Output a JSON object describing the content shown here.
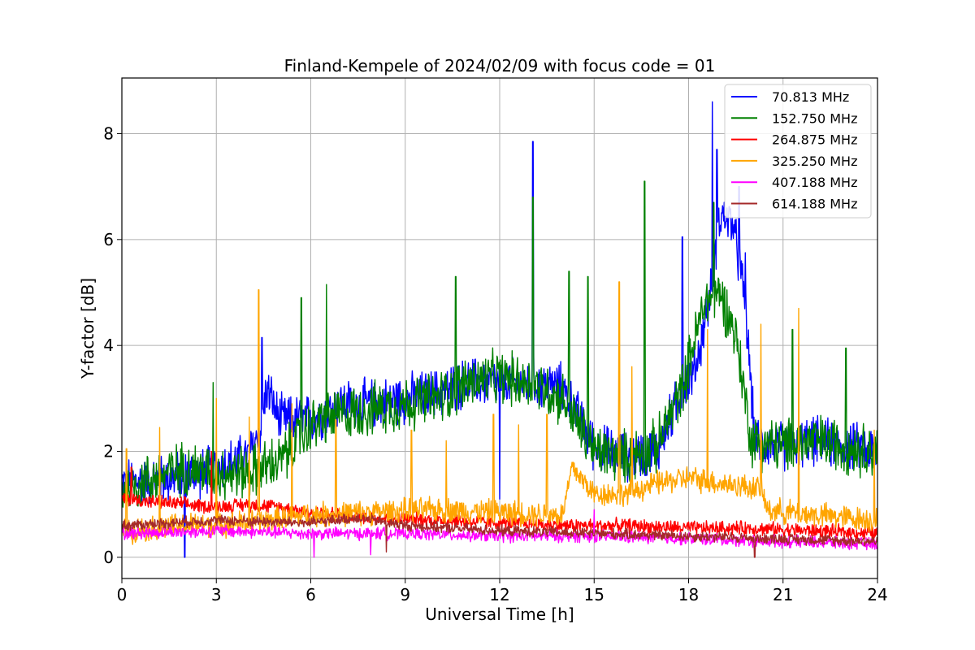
{
  "chart_data": {
    "type": "line",
    "title": "Finland-Kempele of 2024/02/09 with focus code = 01",
    "xlabel": "Universal Time [h]",
    "ylabel": "Y-factor [dB]",
    "xlim": [
      0,
      24
    ],
    "ylim": [
      -0.4,
      9.05
    ],
    "xticks": [
      0,
      3,
      6,
      9,
      12,
      15,
      18,
      21,
      24
    ],
    "yticks": [
      0,
      2,
      4,
      6,
      8
    ],
    "grid": true,
    "legend_position": "top-right",
    "series": [
      {
        "name": " 70.813 MHz",
        "color": "#0000ff",
        "noise": 0.55,
        "x": [
          0,
          1.5,
          2.5,
          3,
          4,
          4.4,
          4.6,
          5,
          6,
          7,
          8,
          9,
          10,
          11,
          12,
          13,
          14,
          15,
          16,
          17,
          17.8,
          18.2,
          18.7,
          19,
          19.4,
          19.8,
          20.1,
          21,
          22,
          23,
          24
        ],
        "y": [
          1.4,
          1.5,
          1.6,
          1.7,
          1.9,
          2.4,
          3.2,
          2.6,
          2.6,
          2.9,
          2.9,
          3.0,
          3.1,
          3.3,
          3.3,
          3.3,
          3.2,
          2.1,
          1.9,
          2.0,
          3.2,
          3.5,
          5.0,
          6.5,
          6.3,
          4.8,
          2.2,
          2.1,
          2.2,
          2.1,
          2.0
        ],
        "spikes": [
          [
            4.45,
            4.15
          ],
          [
            13.05,
            7.85
          ],
          [
            17.8,
            6.05
          ],
          [
            18.75,
            8.6
          ],
          [
            18.9,
            7.7
          ],
          [
            19.6,
            7.0
          ],
          [
            19.8,
            5.75
          ],
          [
            12,
            1.1
          ],
          [
            2.0,
            0.0
          ]
        ]
      },
      {
        "name": "152.750 MHz",
        "color": "#008000",
        "noise": 0.6,
        "x": [
          0,
          1,
          2,
          3,
          4,
          5,
          6,
          7,
          8,
          9,
          10,
          11,
          12,
          13,
          14,
          15,
          16,
          17,
          17.8,
          18.5,
          19,
          19.5,
          20,
          21,
          22,
          23,
          24
        ],
        "y": [
          1.3,
          1.5,
          1.7,
          1.6,
          1.6,
          1.8,
          2.5,
          2.7,
          2.8,
          2.9,
          3.0,
          3.3,
          3.4,
          3.3,
          3.0,
          2.0,
          1.9,
          2.1,
          3.2,
          4.8,
          5.0,
          4.2,
          2.2,
          2.1,
          2.2,
          2.1,
          2.0
        ],
        "spikes": [
          [
            2.9,
            3.3
          ],
          [
            5.7,
            4.9
          ],
          [
            6.5,
            5.15
          ],
          [
            10.6,
            5.3
          ],
          [
            13.05,
            6.8
          ],
          [
            14.2,
            5.4
          ],
          [
            14.8,
            5.3
          ],
          [
            16.6,
            7.1
          ],
          [
            18.8,
            6.7
          ],
          [
            21.3,
            4.3
          ],
          [
            23.0,
            3.95
          ]
        ]
      },
      {
        "name": "264.875 MHz",
        "color": "#ff0000",
        "noise": 0.16,
        "x": [
          0,
          1,
          2,
          3,
          4,
          5,
          6,
          8,
          10,
          12,
          14,
          16,
          18,
          20,
          22,
          24
        ],
        "y": [
          1.1,
          1.05,
          1.0,
          0.95,
          1.0,
          0.95,
          0.85,
          0.75,
          0.7,
          0.65,
          0.6,
          0.6,
          0.55,
          0.55,
          0.5,
          0.45
        ],
        "spikes": [
          [
            2.85,
            2.0
          ],
          [
            0.3,
            1.7
          ]
        ]
      },
      {
        "name": "325.250 MHz",
        "color": "#ffa500",
        "noise": 0.28,
        "x": [
          0,
          2,
          4,
          6,
          8,
          10,
          12,
          14,
          14.3,
          15,
          16,
          17,
          18,
          19,
          20.3,
          20.5,
          22,
          24
        ],
        "y": [
          0.5,
          0.6,
          0.65,
          0.8,
          0.85,
          0.9,
          0.85,
          0.8,
          1.7,
          1.2,
          1.2,
          1.4,
          1.5,
          1.4,
          1.3,
          0.9,
          0.8,
          0.7
        ],
        "spikes": [
          [
            0.15,
            2.05
          ],
          [
            1.2,
            2.45
          ],
          [
            3.0,
            3.0
          ],
          [
            4.05,
            2.65
          ],
          [
            4.35,
            5.05
          ],
          [
            5.4,
            2.9
          ],
          [
            6.8,
            2.6
          ],
          [
            9.2,
            2.4
          ],
          [
            10.3,
            2.2
          ],
          [
            11.8,
            2.7
          ],
          [
            12.6,
            2.5
          ],
          [
            13.5,
            2.7
          ],
          [
            15.8,
            5.2
          ],
          [
            16.2,
            3.6
          ],
          [
            18.6,
            4.3
          ],
          [
            20.3,
            4.4
          ],
          [
            21.5,
            4.7
          ],
          [
            23.9,
            2.4
          ]
        ]
      },
      {
        "name": "407.188 MHz",
        "color": "#ff00ff",
        "noise": 0.14,
        "x": [
          0,
          3,
          6,
          9,
          12,
          15,
          18,
          21,
          24
        ],
        "y": [
          0.45,
          0.5,
          0.45,
          0.45,
          0.4,
          0.4,
          0.35,
          0.3,
          0.25
        ],
        "spikes": [
          [
            6.1,
            0.0
          ],
          [
            7.9,
            0.05
          ],
          [
            15.0,
            0.9
          ]
        ]
      },
      {
        "name": "614.188 MHz",
        "color": "#a52a2a",
        "noise": 0.12,
        "x": [
          0,
          3,
          6,
          7.5,
          9,
          12,
          15,
          18,
          21,
          24
        ],
        "y": [
          0.6,
          0.7,
          0.65,
          0.75,
          0.6,
          0.5,
          0.45,
          0.4,
          0.35,
          0.3
        ],
        "spikes": [
          [
            8.4,
            0.1
          ],
          [
            20.1,
            0.0
          ]
        ]
      }
    ]
  }
}
